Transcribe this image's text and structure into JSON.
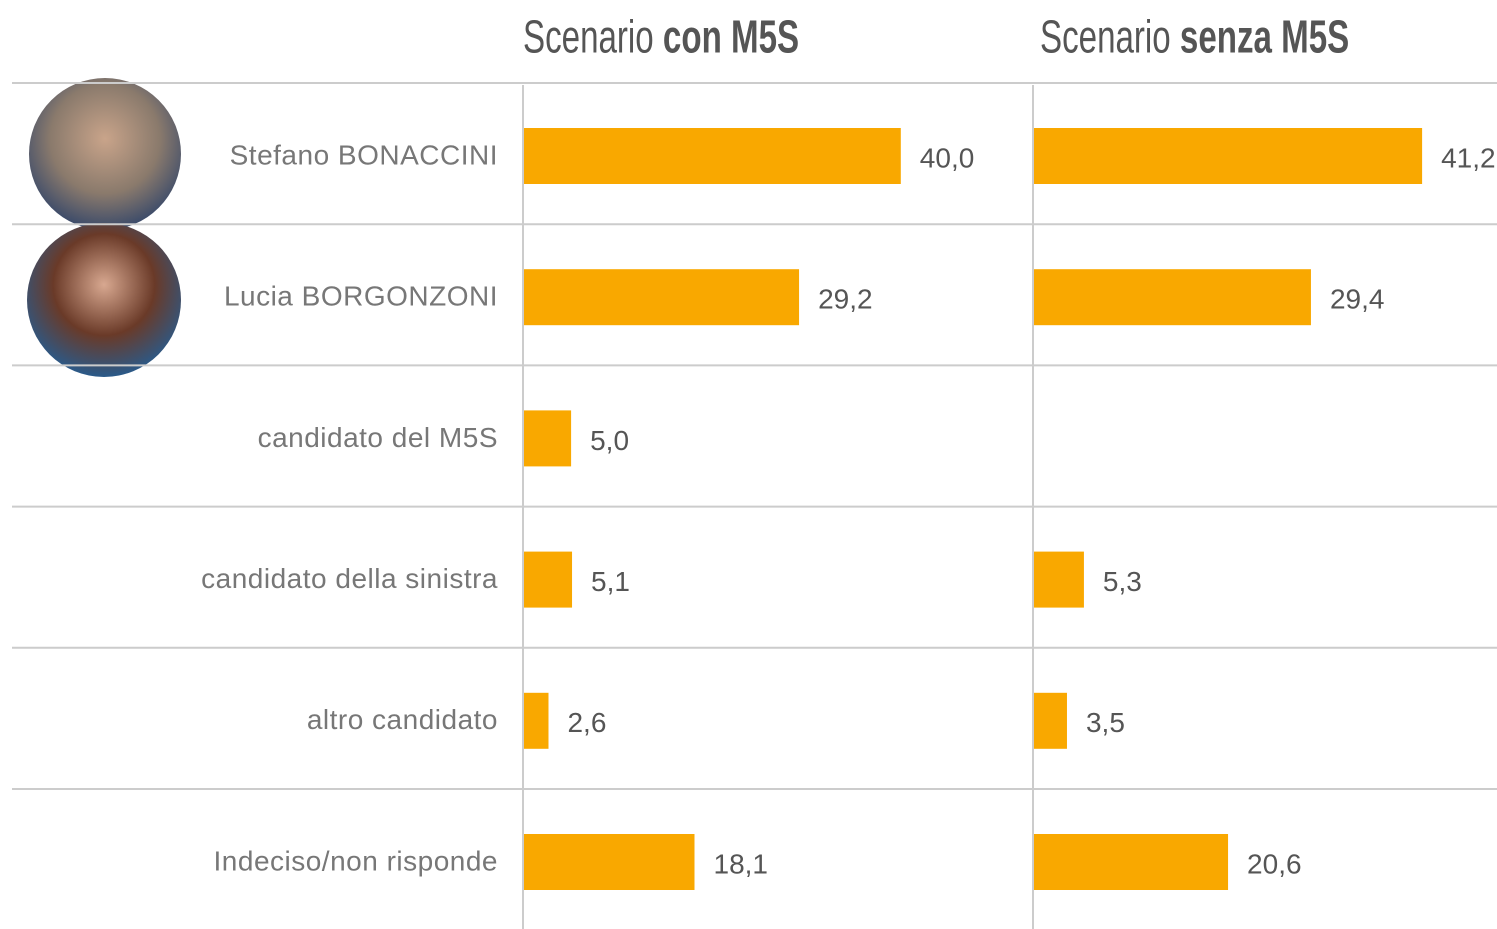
{
  "chart_data": {
    "type": "bar",
    "categories": [
      "Stefano BONACCINI",
      "Lucia BORGONZONI",
      "candidato del M5S",
      "candidato della sinistra",
      "altro candidato",
      "Indeciso/non risponde"
    ],
    "series": [
      {
        "name": {
          "prefix": "Scenario",
          "emphasis": "con M5S"
        },
        "color": "#f9a800",
        "values": [
          40.0,
          29.2,
          5.0,
          5.1,
          2.6,
          18.1
        ],
        "value_labels": [
          "40,0",
          "29,2",
          "5,0",
          "5,1",
          "2,6",
          "18,1"
        ]
      },
      {
        "name": {
          "prefix": "Scenario",
          "emphasis": "senza M5S"
        },
        "color": "#f9a800",
        "values": [
          41.2,
          29.4,
          null,
          5.3,
          3.5,
          20.6
        ],
        "value_labels": [
          "41,2",
          "29,4",
          null,
          "5,3",
          "3,5",
          "20,6"
        ]
      }
    ]
  }
}
